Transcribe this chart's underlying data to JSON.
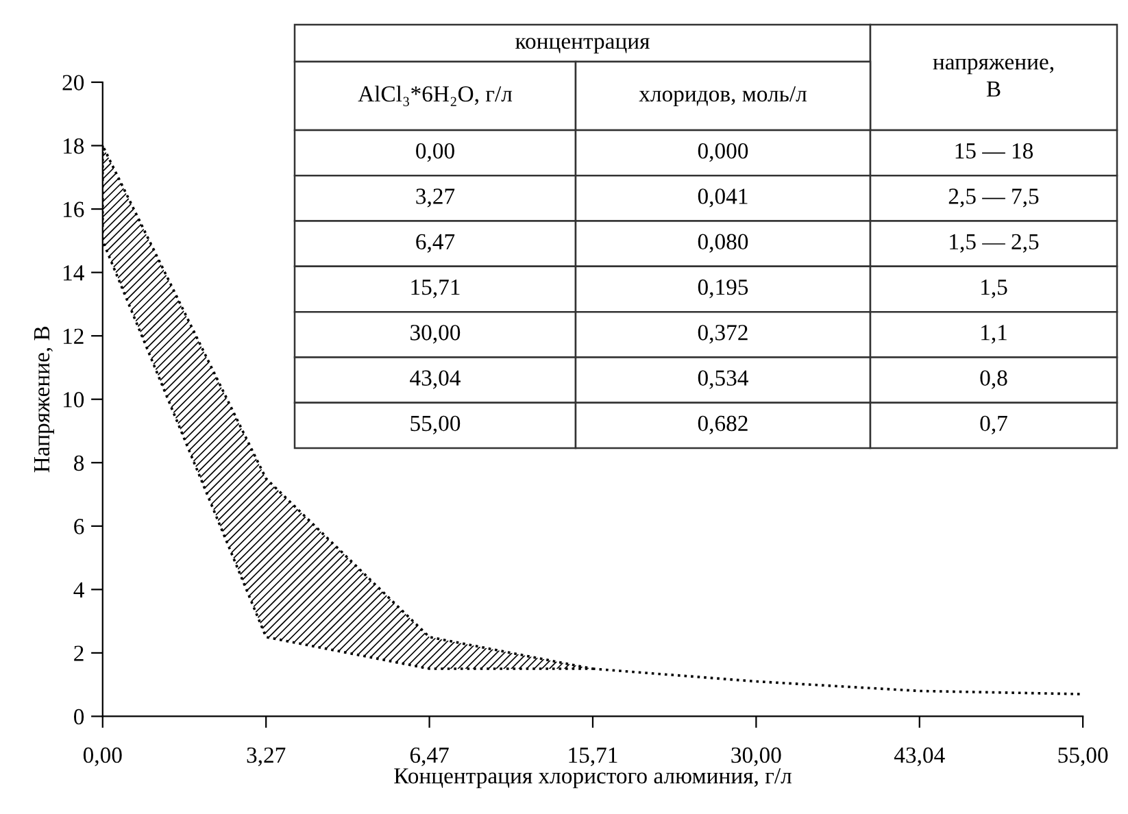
{
  "chart_data": {
    "type": "line",
    "xlabel": "Концентрация хлористого алюминия, г/л",
    "ylabel": "Напряжение, В",
    "categories": [
      "0,00",
      "3,27",
      "6,47",
      "15,71",
      "30,00",
      "43,04",
      "55,00"
    ],
    "series": [
      {
        "color": "#000000",
        "line_style": "dotted",
        "values": [
          null,
          null,
          null,
          1.5,
          1.1,
          0.8,
          0.7
        ],
        "lower": [
          15,
          2.5,
          1.5,
          1.5,
          null,
          null,
          null
        ],
        "upper": [
          18,
          7.5,
          2.5,
          1.5,
          null,
          null,
          null
        ]
      }
    ],
    "ylim": [
      0,
      20
    ],
    "yticks": [
      0,
      2,
      4,
      6,
      8,
      10,
      12,
      14,
      16,
      18,
      20
    ],
    "grid": false,
    "legend": false,
    "annotations": [
      "концентрация",
      "напряжение,\nВ",
      "AlCl₃*6H₂O, г/л",
      "хлоридов, моль/л",
      "0,00",
      "0,000",
      "15 — 18",
      "3,27",
      "0,041",
      "2,5 — 7,5",
      "6,47",
      "0,080",
      "1,5 — 2,5",
      "15,71",
      "0,195",
      "1,5",
      "30,00",
      "0,372",
      "1,1",
      "43,04",
      "0,534",
      "0,8",
      "55,00",
      "0,682",
      "0,7"
    ]
  }
}
